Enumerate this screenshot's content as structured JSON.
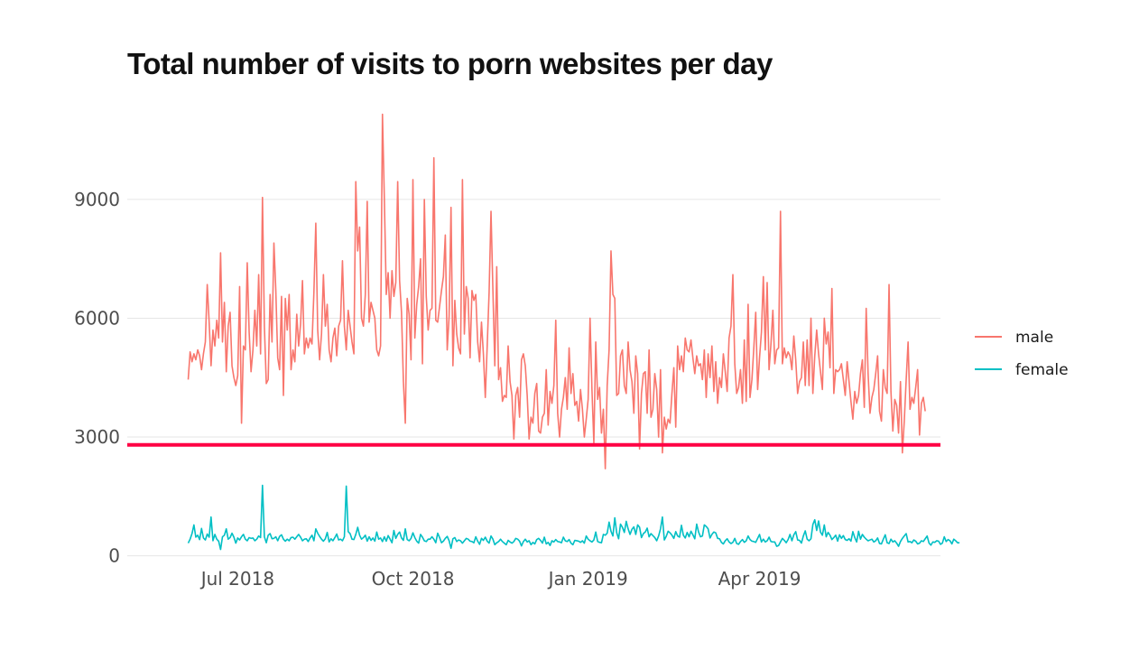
{
  "chart_data": {
    "type": "line",
    "title": "Total number of visits to porn websites per day",
    "xlabel": "",
    "ylabel": "",
    "x_ticks": [
      {
        "date": "2018-07-01",
        "label": "Jul 2018"
      },
      {
        "date": "2018-10-01",
        "label": "Oct 2018"
      },
      {
        "date": "2019-01-01",
        "label": "Jan 2019"
      },
      {
        "date": "2019-04-01",
        "label": "Apr 2019"
      }
    ],
    "y_ticks": [
      0,
      3000,
      6000,
      9000
    ],
    "xlim": [
      "2018-05-04",
      "2019-07-05"
    ],
    "ylim": [
      -100,
      11300
    ],
    "grid": "horizontal",
    "legend_position": "right",
    "start_date": "2018-06-05",
    "reference_line": {
      "y": 2800,
      "color": "#ff0044"
    },
    "series": [
      {
        "name": "male",
        "color": "#f8766d",
        "values": [
          4450,
          5150,
          4900,
          5100,
          4950,
          5200,
          5050,
          4700,
          5100,
          5400,
          6850,
          5900,
          4800,
          5700,
          5300,
          5950,
          5500,
          7650,
          5400,
          6400,
          4650,
          5800,
          6150,
          4800,
          4500,
          4300,
          4550,
          6800,
          3350,
          5300,
          5200,
          7400,
          5650,
          4650,
          5200,
          6200,
          5300,
          7100,
          5100,
          9050,
          5800,
          4350,
          4450,
          6600,
          5400,
          7900,
          6700,
          5000,
          4700,
          6550,
          4050,
          6500,
          5700,
          6600,
          4700,
          5200,
          4900,
          6100,
          5300,
          5850,
          6950,
          5100,
          5500,
          5250,
          5500,
          5350,
          6650,
          8400,
          5700,
          4950,
          5600,
          7100,
          5800,
          6350,
          5200,
          4900,
          5500,
          5750,
          5050,
          5800,
          5950,
          7450,
          5800,
          5200,
          6200,
          5800,
          5400,
          5100,
          9450,
          7700,
          8300,
          6000,
          5800,
          6600,
          8950,
          5900,
          6400,
          6200,
          6000,
          5200,
          5050,
          5300,
          11150,
          9000,
          6600,
          7150,
          6000,
          7200,
          6550,
          6900,
          9450,
          6950,
          6150,
          4400,
          3350,
          6500,
          6100,
          4950,
          9500,
          5500,
          6350,
          6800,
          7500,
          4850,
          9000,
          6550,
          5700,
          6200,
          6250,
          10050,
          5950,
          5900,
          6300,
          6700,
          7050,
          8100,
          5200,
          6050,
          8800,
          4800,
          6450,
          5600,
          5250,
          5100,
          9500,
          5600,
          6800,
          6500,
          5000,
          6700,
          6450,
          6600,
          5400,
          4900,
          5900,
          5100,
          4000,
          5300,
          6650,
          8700,
          6700,
          4800,
          7300,
          4450,
          4750,
          3900,
          4050,
          4000,
          5300,
          4400,
          4050,
          2950,
          4050,
          4250,
          3500,
          4950,
          5100,
          4800,
          4050,
          2950,
          3500,
          3350,
          4100,
          4350,
          3150,
          3100,
          3500,
          3600,
          4700,
          3300,
          4150,
          3850,
          4300,
          5950,
          3600,
          3000,
          3700,
          4000,
          4500,
          3700,
          5250,
          4100,
          4600,
          3800,
          3900,
          3400,
          4200,
          3700,
          3000,
          3450,
          3950,
          6000,
          4200,
          2850,
          5400,
          3950,
          4250,
          3100,
          3700,
          2200,
          4300,
          5200,
          7700,
          6600,
          6500,
          4050,
          4100,
          5050,
          5200,
          4300,
          4100,
          5400,
          4700,
          4400,
          3600,
          5050,
          4600,
          2700,
          4100,
          4600,
          4650,
          3600,
          5200,
          3500,
          3700,
          4600,
          4200,
          3000,
          4700,
          2600,
          3500,
          3200,
          3450,
          3350,
          4100,
          4750,
          3250,
          5300,
          4700,
          5050,
          4650,
          5500,
          5200,
          5150,
          5450,
          5000,
          4600,
          5050,
          4800,
          4850,
          4450,
          5200,
          4000,
          5100,
          4500,
          5300,
          4150,
          4900,
          3850,
          4500,
          4250,
          5100,
          4650,
          4150,
          5500,
          5800,
          7100,
          4850,
          4100,
          4250,
          4700,
          3850,
          5450,
          3900,
          6350,
          4000,
          4450,
          5250,
          6150,
          4200,
          5000,
          5650,
          7050,
          5200,
          6900,
          4700,
          5350,
          6200,
          4850,
          5200,
          5250,
          8700,
          4850,
          5250,
          5000,
          5150,
          5050,
          4700,
          5550,
          4950,
          4100,
          4400,
          4500,
          5400,
          4300,
          5450,
          4300,
          6000,
          4100,
          5050,
          5700,
          5100,
          4650,
          4200,
          6000,
          5350,
          5650,
          4750,
          6750,
          4100,
          4700,
          4650,
          4700,
          4850,
          4450,
          4050,
          4900,
          4400,
          3900,
          3450,
          4150,
          3850,
          4050,
          4600,
          4950,
          3750,
          6250,
          4600,
          3600,
          4000,
          4200,
          4600,
          5050,
          3650,
          3400,
          4700,
          4250,
          4100,
          6850,
          4150,
          3150,
          3950,
          3800,
          3100,
          4400,
          2600,
          3400,
          4450,
          5400,
          3700,
          4000,
          3850,
          4250,
          4700,
          3050,
          3850,
          4000,
          3650
        ]
      },
      {
        "name": "female",
        "color": "#00bfc4",
        "values": [
          320,
          420,
          560,
          780,
          470,
          520,
          410,
          690,
          450,
          400,
          550,
          470,
          980,
          380,
          540,
          420,
          370,
          160,
          480,
          520,
          680,
          420,
          460,
          570,
          470,
          320,
          450,
          400,
          480,
          540,
          420,
          380,
          460,
          440,
          450,
          380,
          420,
          500,
          460,
          1780,
          480,
          330,
          520,
          560,
          430,
          440,
          480,
          380,
          490,
          530,
          420,
          370,
          420,
          380,
          460,
          470,
          420,
          480,
          540,
          470,
          380,
          420,
          430,
          360,
          450,
          520,
          380,
          680,
          570,
          490,
          420,
          370,
          430,
          590,
          350,
          430,
          380,
          460,
          550,
          400,
          420,
          380,
          480,
          1760,
          610,
          560,
          420,
          410,
          540,
          720,
          520,
          420,
          460,
          520,
          370,
          480,
          390,
          450,
          370,
          600,
          420,
          450,
          360,
          480,
          370,
          510,
          420,
          330,
          640,
          440,
          540,
          600,
          450,
          390,
          680,
          410,
          380,
          440,
          580,
          460,
          370,
          320,
          540,
          470,
          380,
          360,
          420,
          420,
          480,
          420,
          330,
          570,
          460,
          330,
          370,
          440,
          490,
          380,
          190,
          430,
          460,
          360,
          400,
          380,
          320,
          380,
          440,
          420,
          370,
          360,
          330,
          480,
          370,
          290,
          440,
          390,
          470,
          370,
          320,
          500,
          420,
          280,
          330,
          360,
          420,
          360,
          320,
          280,
          390,
          350,
          320,
          360,
          440,
          420,
          370,
          250,
          360,
          420,
          350,
          380,
          280,
          340,
          300,
          410,
          440,
          390,
          320,
          470,
          300,
          340,
          260,
          380,
          350,
          410,
          360,
          350,
          330,
          470,
          380,
          360,
          410,
          320,
          280,
          390,
          380,
          370,
          340,
          380,
          320,
          500,
          420,
          380,
          350,
          400,
          600,
          360,
          340,
          330,
          540,
          520,
          570,
          850,
          620,
          500,
          960,
          580,
          430,
          800,
          720,
          590,
          870,
          680,
          540,
          670,
          730,
          540,
          780,
          720,
          460,
          560,
          600,
          700,
          480,
          560,
          510,
          460,
          380,
          500,
          680,
          980,
          400,
          490,
          620,
          580,
          520,
          440,
          610,
          500,
          470,
          770,
          520,
          450,
          590,
          480,
          620,
          530,
          430,
          800,
          600,
          480,
          500,
          780,
          740,
          680,
          450,
          540,
          600,
          580,
          440,
          430,
          340,
          300,
          380,
          430,
          350,
          310,
          340,
          440,
          310,
          290,
          360,
          410,
          340,
          380,
          500,
          410,
          370,
          360,
          340,
          440,
          540,
          350,
          420,
          350,
          380,
          470,
          360,
          350,
          350,
          240,
          260,
          350,
          440,
          390,
          330,
          410,
          540,
          380,
          530,
          610,
          400,
          390,
          320,
          500,
          630,
          420,
          380,
          430,
          790,
          910,
          640,
          880,
          600,
          520,
          780,
          480,
          590,
          520,
          410,
          460,
          520,
          370,
          530,
          440,
          510,
          410,
          390,
          430,
          370,
          610,
          460,
          350,
          620,
          420,
          540,
          470,
          420,
          380,
          400,
          420,
          350,
          380,
          450,
          310,
          300,
          420,
          530,
          330,
          310,
          420,
          350,
          380,
          320,
          240,
          360,
          440,
          500,
          560,
          350,
          360,
          330,
          400,
          370,
          300,
          320,
          380,
          360,
          430,
          500,
          320,
          270,
          350,
          340,
          380,
          370,
          290,
          320,
          480,
          360,
          410,
          380,
          300,
          420,
          380,
          330,
          330
        ]
      }
    ]
  }
}
